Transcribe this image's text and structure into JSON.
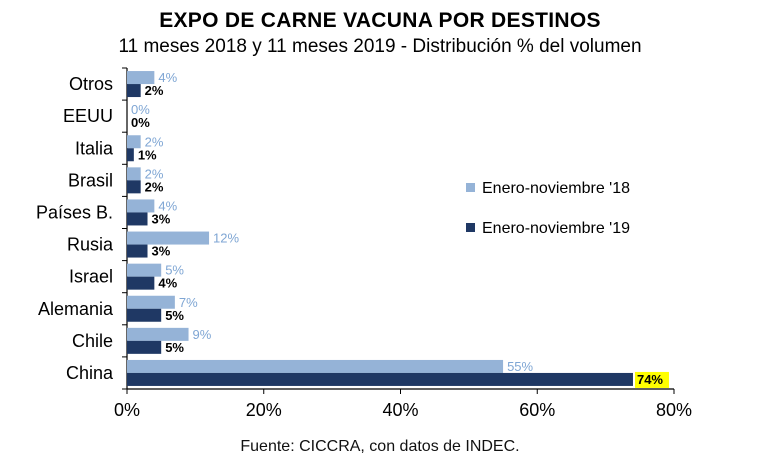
{
  "title": "EXPO DE CARNE VACUNA POR DESTINOS",
  "subtitle": "11 meses 2018 y 11 meses 2019 - Distribución % del volumen",
  "source": "Fuente: CICCRA, con datos de INDEC.",
  "chart_data": {
    "type": "bar",
    "orientation": "horizontal",
    "categories": [
      "Otros",
      "EEUU",
      "Italia",
      "Brasil",
      "Países B.",
      "Rusia",
      "Israel",
      "Alemania",
      "Chile",
      "China"
    ],
    "series": [
      {
        "name": "Enero-noviembre '18",
        "color": "#95b3d7",
        "label_color": "#7fa6d4",
        "values": [
          4,
          0,
          2,
          2,
          4,
          12,
          5,
          7,
          9,
          55
        ],
        "labels": [
          "4%",
          "0%",
          "2%",
          "2%",
          "4%",
          "12%",
          "5%",
          "7%",
          "9%",
          "55%"
        ]
      },
      {
        "name": "Enero-noviembre '19",
        "color": "#1f3864",
        "label_color": "#000000",
        "values": [
          2,
          0,
          1,
          2,
          3,
          3,
          4,
          5,
          5,
          74
        ],
        "labels": [
          "2%",
          "0%",
          "1%",
          "2%",
          "3%",
          "3%",
          "4%",
          "5%",
          "5%",
          "74%"
        ]
      }
    ],
    "highlight": {
      "series": 1,
      "category": "China",
      "color": "#ffff00"
    },
    "xlim": [
      0,
      80
    ],
    "xticks": [
      0,
      20,
      40,
      60,
      80
    ],
    "xtick_labels": [
      "0%",
      "20%",
      "40%",
      "60%",
      "80%"
    ],
    "grid": false,
    "legend_position": "right"
  }
}
